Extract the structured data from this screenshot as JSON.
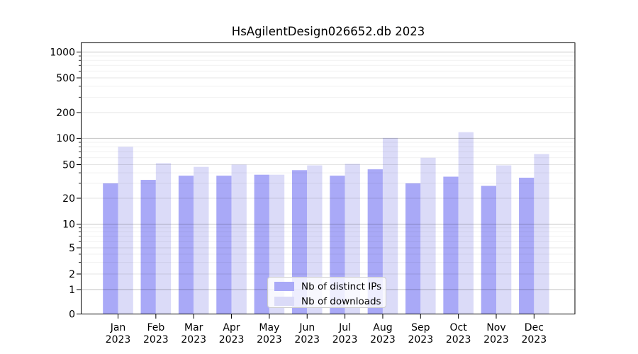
{
  "title": "HsAgilentDesign026652.db 2023",
  "colors": {
    "ips": "#a9a9f7",
    "downloads": "#dbdbf8",
    "grid_power": "rgba(0,0,0,0.24)",
    "grid_labeled": "rgba(0,0,0,0.10)",
    "grid_minor": "rgba(0,0,0,0.055)",
    "axis": "#000000"
  },
  "legend": {
    "items": [
      {
        "label": "Nb of distinct IPs",
        "key": "ips"
      },
      {
        "label": "Nb of downloads",
        "key": "downloads"
      }
    ]
  },
  "y_axis": {
    "ticks": [
      {
        "v": 1000,
        "label": "1000"
      },
      {
        "v": 500,
        "label": "500"
      },
      {
        "v": 200,
        "label": "200"
      },
      {
        "v": 100,
        "label": "100"
      },
      {
        "v": 50,
        "label": "50"
      },
      {
        "v": 20,
        "label": "20"
      },
      {
        "v": 10,
        "label": "10"
      },
      {
        "v": 5,
        "label": "5"
      },
      {
        "v": 2,
        "label": "2"
      },
      {
        "v": 1,
        "label": "1"
      },
      {
        "v": 0,
        "label": "0"
      }
    ]
  },
  "x_axis": {
    "year": "2023"
  },
  "chart_data": {
    "type": "bar",
    "title": "HsAgilentDesign026652.db 2023",
    "categories": [
      "Jan",
      "Feb",
      "Mar",
      "Apr",
      "May",
      "Jun",
      "Jul",
      "Aug",
      "Sep",
      "Oct",
      "Nov",
      "Dec"
    ],
    "x_tick_second_line": "2023",
    "series": [
      {
        "name": "Nb of distinct IPs",
        "values": [
          30,
          33,
          37,
          37,
          38,
          43,
          37,
          44,
          30,
          36,
          28,
          35
        ]
      },
      {
        "name": "Nb of downloads",
        "values": [
          80,
          52,
          47,
          50,
          38,
          49,
          51,
          101,
          60,
          118,
          49,
          66
        ]
      }
    ],
    "yscale": "symlog",
    "ylim": [
      0,
      1300
    ],
    "y_ticks": [
      0,
      1,
      2,
      5,
      10,
      20,
      50,
      100,
      200,
      500,
      1000
    ],
    "grid": true,
    "grid_on_top": true,
    "legend_position": "lower center"
  }
}
